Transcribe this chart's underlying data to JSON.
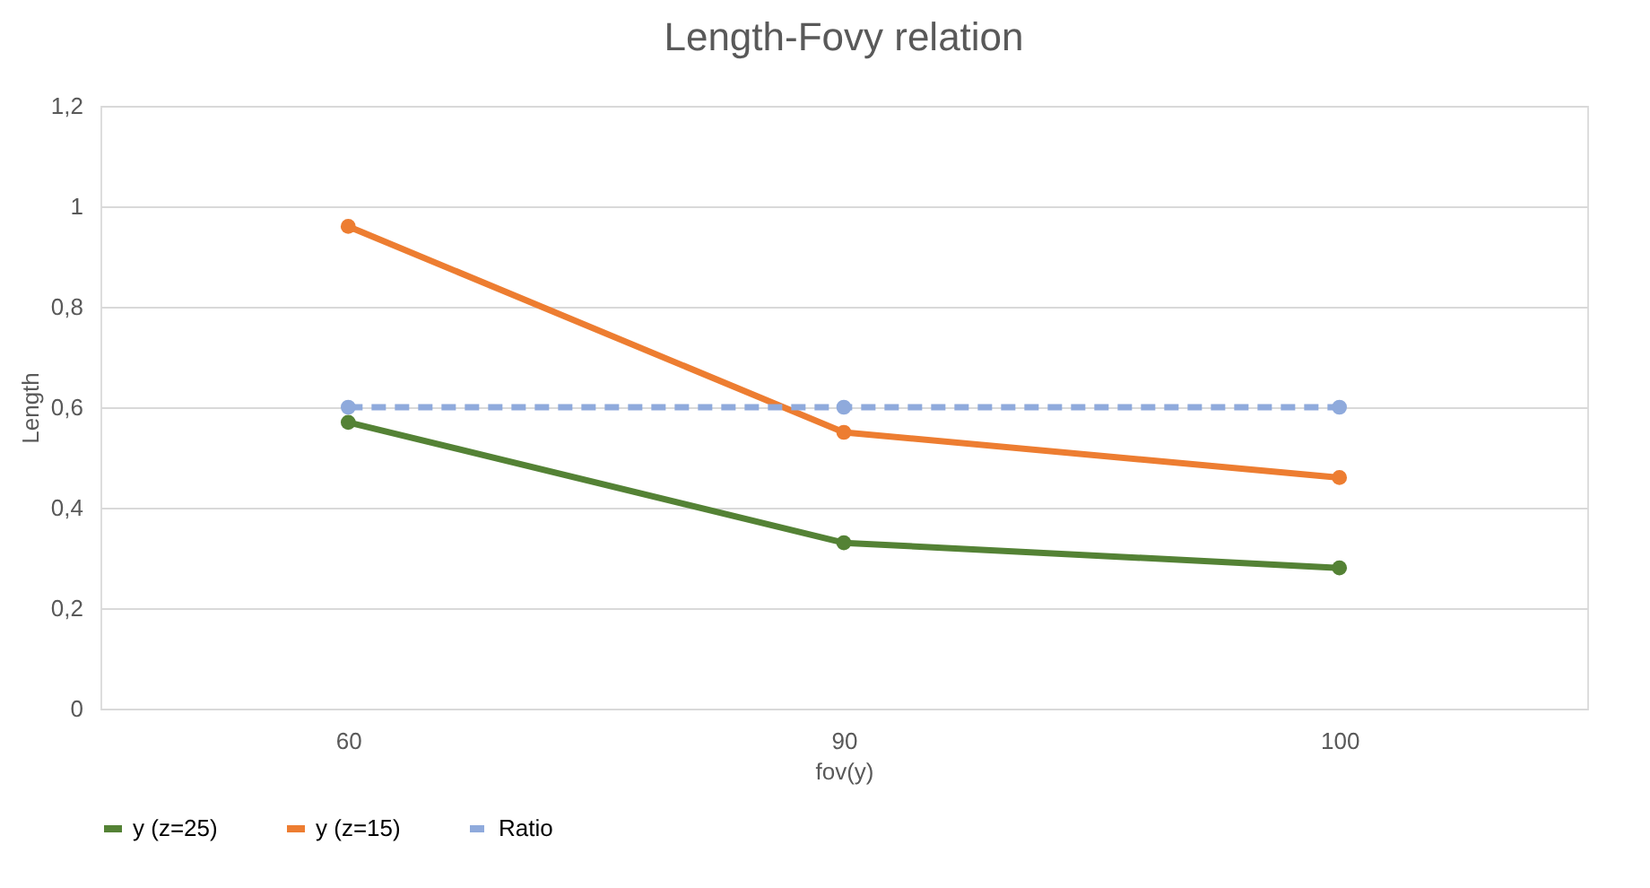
{
  "chart_data": {
    "type": "line",
    "title": "Length-Fovy relation",
    "xlabel": "fov(y)",
    "ylabel": "Length",
    "categories": [
      "60",
      "90",
      "100"
    ],
    "series": [
      {
        "name": "y (z=25)",
        "color": "#548235",
        "values": [
          0.57,
          0.33,
          0.28
        ],
        "line_style": "solid"
      },
      {
        "name": "y (z=15)",
        "color": "#ed7d31",
        "values": [
          0.96,
          0.55,
          0.46
        ],
        "line_style": "solid"
      },
      {
        "name": "Ratio",
        "color": "#8faadc",
        "values": [
          0.6,
          0.6,
          0.6
        ],
        "line_style": "dashed"
      }
    ],
    "ylim": [
      0,
      1.2
    ],
    "yticks": [
      0,
      {
        "value": 0.2,
        "label": "0,2"
      },
      {
        "value": 0.4,
        "label": "0,4"
      },
      {
        "value": 0.6,
        "label": "0,6"
      },
      {
        "value": 0.8,
        "label": "0,8"
      },
      1,
      {
        "value": 1.2,
        "label": "1,2"
      }
    ],
    "grid": "y",
    "legend": "bottom",
    "marker": "circle"
  }
}
